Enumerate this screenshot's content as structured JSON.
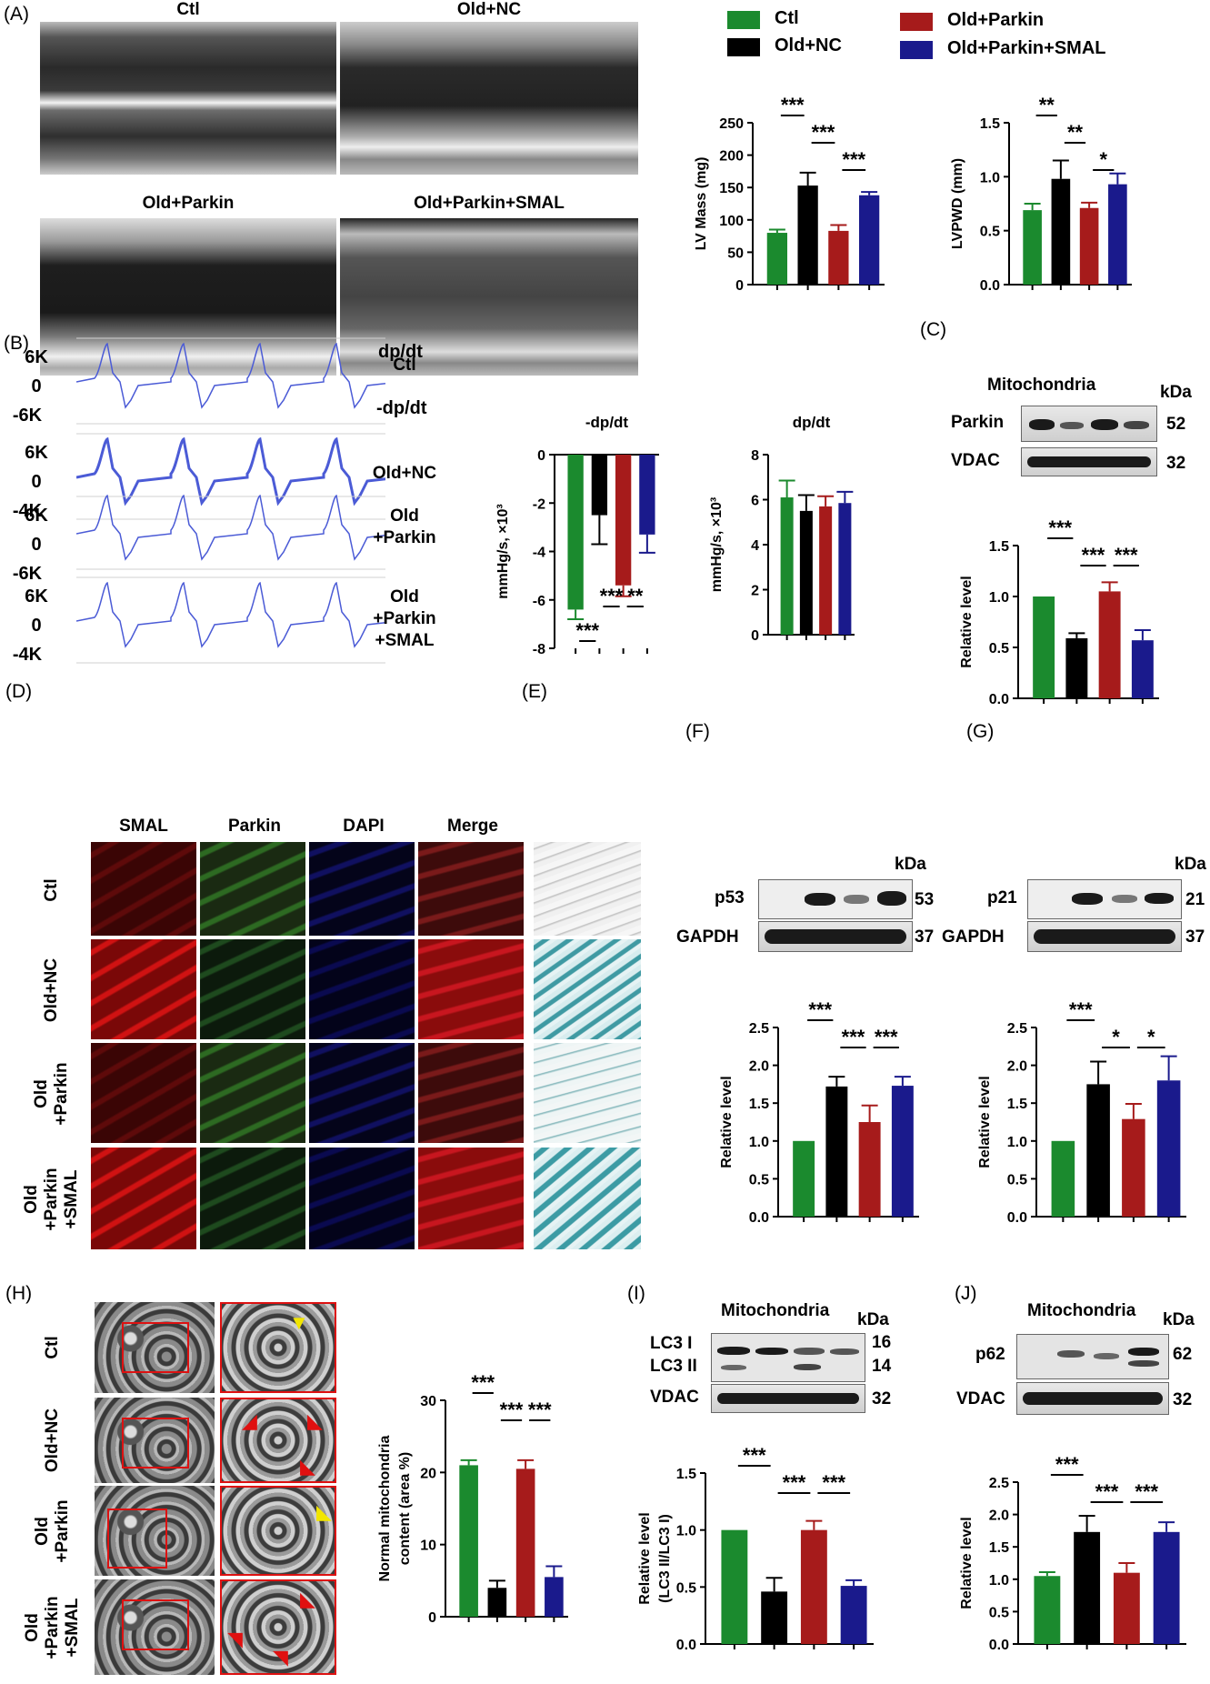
{
  "colors": {
    "ctl": "#1b8a2e",
    "old_nc": "#000000",
    "old_parkin": "#a61b1b",
    "old_parkin_smal": "#1a1a8c",
    "trace": "#4b5bd6"
  },
  "legend": {
    "ctl": "Ctl",
    "old_nc": "Old+NC",
    "old_parkin": "Old+Parkin",
    "old_parkin_smal": "Old+Parkin+SMAL"
  },
  "panels": {
    "A": "(A)",
    "B": "(B)",
    "C": "(C)",
    "D": "(D)",
    "E": "(E)",
    "F": "(F)",
    "G": "(G)",
    "H": "(H)",
    "I": "(I)",
    "J": "(J)"
  },
  "panelA": {
    "echo_titles": [
      "Ctl",
      "Old+NC",
      "Old+Parkin",
      "Old+Parkin+SMAL"
    ]
  },
  "panelB": {
    "traces": [
      {
        "top": "6K",
        "mid": "0",
        "bot": "-6K",
        "label": "Ctl",
        "right_top": "dp/dt",
        "right_bot": "-dp/dt"
      },
      {
        "top": "6K",
        "mid": "0",
        "bot": "-4K",
        "label": "Old+NC"
      },
      {
        "top": "6K",
        "mid": "0",
        "bot": "-6K",
        "label": "Old\n+Parkin"
      },
      {
        "top": "6K",
        "mid": "0",
        "bot": "-4K",
        "label": "Old\n+Parkin\n+SMAL"
      }
    ]
  },
  "panelC": {
    "header": "Mitochondria",
    "kda": "kDa",
    "bands": [
      {
        "name": "Parkin",
        "kda": "52"
      },
      {
        "name": "VDAC",
        "kda": "32"
      }
    ]
  },
  "panelD": {
    "columns": [
      "SMAL",
      "Parkin",
      "DAPI",
      "Merge"
    ],
    "rows": [
      "Ctl",
      "Old+NC",
      "Old\n+Parkin",
      "Old\n+Parkin\n+SMAL"
    ]
  },
  "panelF": {
    "kda": "kDa",
    "bands": [
      {
        "name": "p53",
        "kda": "53"
      },
      {
        "name": "GAPDH",
        "kda": "37"
      }
    ]
  },
  "panelG": {
    "kda": "kDa",
    "bands": [
      {
        "name": "p21",
        "kda": "21"
      },
      {
        "name": "GAPDH",
        "kda": "37"
      }
    ]
  },
  "panelH": {
    "rows": [
      "Ctl",
      "Old+NC",
      "Old\n+Parkin",
      "Old\n+Parkin\n+SMAL"
    ]
  },
  "panelI": {
    "header": "Mitochondria",
    "kda": "kDa",
    "bands": [
      {
        "name": "LC3 I",
        "kda": "16"
      },
      {
        "name": "LC3 II",
        "kda": "14"
      },
      {
        "name": "VDAC",
        "kda": "32"
      }
    ]
  },
  "panelJ": {
    "header": "Mitochondria",
    "kda": "kDa",
    "bands": [
      {
        "name": "p62",
        "kda": "62"
      },
      {
        "name": "VDAC",
        "kda": "32"
      }
    ]
  },
  "chart_data": [
    {
      "id": "lvmass",
      "type": "bar",
      "ylabel": "LV Mass (mg)",
      "ylim": [
        0,
        250
      ],
      "yticks": [
        0,
        50,
        100,
        150,
        200,
        250
      ],
      "values": [
        80,
        153,
        83,
        138
      ],
      "errors": [
        5,
        20,
        9,
        5
      ],
      "sig": [
        {
          "text": "***",
          "from": 0,
          "to": 1,
          "level": 0
        },
        {
          "text": "***",
          "from": 1,
          "to": 2,
          "level": 1
        },
        {
          "text": "***",
          "from": 2,
          "to": 3,
          "level": 2
        }
      ]
    },
    {
      "id": "lvpwd",
      "type": "bar",
      "ylabel": "LVPWD (mm)",
      "ylim": [
        0,
        1.5
      ],
      "yticks": [
        "0.0",
        "0.5",
        "1.0",
        "1.5"
      ],
      "values": [
        0.69,
        0.98,
        0.71,
        0.93
      ],
      "errors": [
        0.06,
        0.17,
        0.05,
        0.1
      ],
      "sig": [
        {
          "text": "**",
          "from": 0,
          "to": 1,
          "level": 0
        },
        {
          "text": "**",
          "from": 1,
          "to": 2,
          "level": 1
        },
        {
          "text": "*",
          "from": 2,
          "to": 3,
          "level": 2
        }
      ]
    },
    {
      "id": "negdpdt",
      "type": "bar",
      "title": "-dp/dt",
      "ylabel": "mmHg/s, ×10³",
      "ylim": [
        -8,
        0
      ],
      "yticks": [
        "-8",
        "-6",
        "-4",
        "-2",
        "0"
      ],
      "values": [
        -6.4,
        -2.5,
        -5.4,
        -3.3
      ],
      "errors": [
        0.4,
        1.2,
        0.45,
        0.75
      ],
      "sig": [
        {
          "text": "***",
          "from": 0,
          "to": 1,
          "level": 0
        },
        {
          "text": "***",
          "from": 1,
          "to": 2,
          "level": 1
        },
        {
          "text": "**",
          "from": 2,
          "to": 3,
          "level": 2
        }
      ]
    },
    {
      "id": "dpdt",
      "type": "bar",
      "title": "dp/dt",
      "ylabel": "mmHg/s, ×10³",
      "ylim": [
        0,
        8
      ],
      "yticks": [
        "0",
        "2",
        "4",
        "6",
        "8"
      ],
      "values": [
        6.1,
        5.5,
        5.7,
        5.85
      ],
      "errors": [
        0.75,
        0.7,
        0.45,
        0.5
      ],
      "sig": []
    },
    {
      "id": "parkin",
      "type": "bar",
      "ylabel": "Relative level",
      "ylim": [
        0,
        1.5
      ],
      "yticks": [
        "0.0",
        "0.5",
        "1.0",
        "1.5"
      ],
      "values": [
        1.0,
        0.59,
        1.05,
        0.57
      ],
      "errors": [
        0.0,
        0.05,
        0.09,
        0.1
      ],
      "sig": [
        {
          "text": "***",
          "from": 0,
          "to": 1,
          "level": 0
        },
        {
          "text": "***",
          "from": 1,
          "to": 2,
          "level": 1
        },
        {
          "text": "***",
          "from": 2,
          "to": 3,
          "level": 1
        }
      ]
    },
    {
      "id": "p53",
      "type": "bar",
      "ylabel": "Relative level",
      "ylim": [
        0,
        2.5
      ],
      "yticks": [
        "0.0",
        "0.5",
        "1.0",
        "1.5",
        "2.0",
        "2.5"
      ],
      "values": [
        1.0,
        1.72,
        1.25,
        1.73
      ],
      "errors": [
        0.0,
        0.13,
        0.22,
        0.12
      ],
      "sig": [
        {
          "text": "***",
          "from": 0,
          "to": 1,
          "level": 0
        },
        {
          "text": "***",
          "from": 1,
          "to": 2,
          "level": 1
        },
        {
          "text": "***",
          "from": 2,
          "to": 3,
          "level": 1
        }
      ]
    },
    {
      "id": "p21",
      "type": "bar",
      "ylabel": "Relative level",
      "ylim": [
        0,
        2.5
      ],
      "yticks": [
        "0.0",
        "0.5",
        "1.0",
        "1.5",
        "2.0",
        "2.5"
      ],
      "values": [
        1.0,
        1.75,
        1.29,
        1.8
      ],
      "errors": [
        0.0,
        0.3,
        0.2,
        0.32
      ],
      "sig": [
        {
          "text": "***",
          "from": 0,
          "to": 1,
          "level": 0
        },
        {
          "text": "*",
          "from": 1,
          "to": 2,
          "level": 1
        },
        {
          "text": "*",
          "from": 2,
          "to": 3,
          "level": 1
        }
      ]
    },
    {
      "id": "mito",
      "type": "bar",
      "ylabel": "Normal mitochondria\ncontent (area %)",
      "ylim": [
        0,
        30
      ],
      "yticks": [
        "0",
        "10",
        "20",
        "30"
      ],
      "values": [
        21,
        4,
        20.5,
        5.5
      ],
      "errors": [
        0.7,
        1.0,
        1.2,
        1.5
      ],
      "sig": [
        {
          "text": "***",
          "from": 0,
          "to": 1,
          "level": 0
        },
        {
          "text": "***",
          "from": 1,
          "to": 2,
          "level": 1
        },
        {
          "text": "***",
          "from": 2,
          "to": 3,
          "level": 1
        }
      ]
    },
    {
      "id": "lc3",
      "type": "bar",
      "ylabel": "Relative level\n(LC3 II/LC3 I)",
      "ylim": [
        0,
        1.5
      ],
      "yticks": [
        "0.0",
        "0.5",
        "1.0",
        "1.5"
      ],
      "values": [
        1.0,
        0.46,
        1.0,
        0.51
      ],
      "errors": [
        0.0,
        0.12,
        0.08,
        0.05
      ],
      "sig": [
        {
          "text": "***",
          "from": 0,
          "to": 1,
          "level": 0
        },
        {
          "text": "***",
          "from": 1,
          "to": 2,
          "level": 1
        },
        {
          "text": "***",
          "from": 2,
          "to": 3,
          "level": 1
        }
      ]
    },
    {
      "id": "p62",
      "type": "bar",
      "ylabel": "Relative level",
      "ylim": [
        0,
        2.5
      ],
      "yticks": [
        "0.0",
        "0.5",
        "1.0",
        "1.5",
        "2.0",
        "2.5"
      ],
      "values": [
        1.05,
        1.73,
        1.1,
        1.73
      ],
      "errors": [
        0.06,
        0.25,
        0.15,
        0.15
      ],
      "sig": [
        {
          "text": "***",
          "from": 0,
          "to": 1,
          "level": 0
        },
        {
          "text": "***",
          "from": 1,
          "to": 2,
          "level": 1
        },
        {
          "text": "***",
          "from": 2,
          "to": 3,
          "level": 1
        }
      ]
    }
  ]
}
